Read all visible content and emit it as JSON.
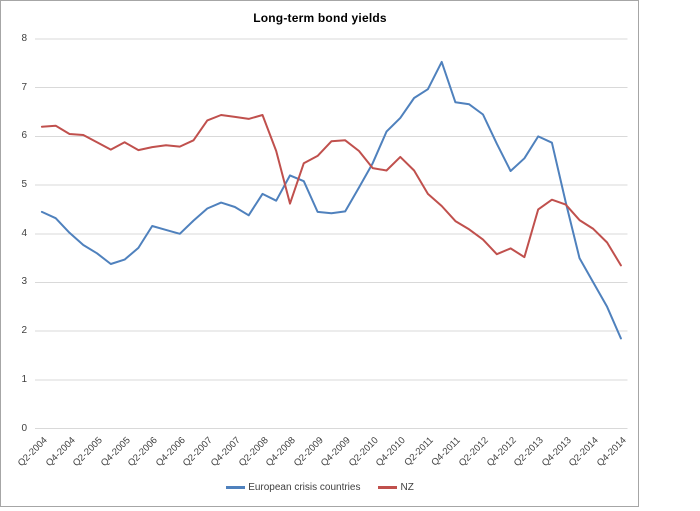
{
  "title": "Long-term bond yields",
  "legend": {
    "items": [
      {
        "label": "European crisis countries",
        "color": "#4f81bd"
      },
      {
        "label": "NZ",
        "color": "#c0504d"
      }
    ],
    "position": "bottom"
  },
  "y_axis": {
    "tick_labels": [
      "0",
      "1",
      "2",
      "3",
      "4",
      "5",
      "6",
      "7",
      "8"
    ]
  },
  "x_axis": {
    "shown_tick_labels": [
      "Q2-2004",
      "Q4-2004",
      "Q2-2005",
      "Q4-2005",
      "Q2-2006",
      "Q4-2006",
      "Q2-2007",
      "Q4-2007",
      "Q2-2008",
      "Q4-2008",
      "Q2-2009",
      "Q4-2009",
      "Q2-2010",
      "Q4-2010",
      "Q2-2011",
      "Q4-2011",
      "Q2-2012",
      "Q4-2012",
      "Q2-2013",
      "Q4-2013",
      "Q2-2014",
      "Q4-2014"
    ],
    "label_rotation_deg": -45
  },
  "colors": {
    "series_blue": "#4f81bd",
    "series_red": "#c0504d",
    "gridline": "#d9d9d9",
    "frame_border": "#a6a6a6",
    "text": "#3f3f3f"
  },
  "chart_data": {
    "type": "line",
    "title": "Long-term bond yields",
    "x": [
      "Q2-2004",
      "Q3-2004",
      "Q4-2004",
      "Q1-2005",
      "Q2-2005",
      "Q3-2005",
      "Q4-2005",
      "Q1-2006",
      "Q2-2006",
      "Q3-2006",
      "Q4-2006",
      "Q1-2007",
      "Q2-2007",
      "Q3-2007",
      "Q4-2007",
      "Q1-2008",
      "Q2-2008",
      "Q3-2008",
      "Q4-2008",
      "Q1-2009",
      "Q2-2009",
      "Q3-2009",
      "Q4-2009",
      "Q1-2010",
      "Q2-2010",
      "Q3-2010",
      "Q4-2010",
      "Q1-2011",
      "Q2-2011",
      "Q3-2011",
      "Q4-2011",
      "Q1-2012",
      "Q2-2012",
      "Q3-2012",
      "Q4-2012",
      "Q1-2013",
      "Q2-2013",
      "Q3-2013",
      "Q4-2013",
      "Q1-2014",
      "Q2-2014",
      "Q3-2014",
      "Q4-2014"
    ],
    "x_tick_step": 2,
    "series": [
      {
        "name": "European crisis countries",
        "color": "#4f81bd",
        "values": [
          4.45,
          4.32,
          4.02,
          3.77,
          3.6,
          3.38,
          3.47,
          3.71,
          4.16,
          4.08,
          4.0,
          4.27,
          4.52,
          4.64,
          4.55,
          4.38,
          4.82,
          4.68,
          5.2,
          5.08,
          4.45,
          4.42,
          4.46,
          4.95,
          5.45,
          6.1,
          6.38,
          6.79,
          6.97,
          7.53,
          6.7,
          6.66,
          6.45,
          5.85,
          5.29,
          5.55,
          6.0,
          5.87,
          4.65,
          3.5,
          3.0,
          2.5,
          1.85
        ]
      },
      {
        "name": "NZ",
        "color": "#c0504d",
        "values": [
          6.2,
          6.22,
          6.05,
          6.03,
          5.88,
          5.73,
          5.88,
          5.72,
          5.78,
          5.82,
          5.79,
          5.92,
          6.33,
          6.44,
          6.4,
          6.36,
          6.44,
          5.7,
          4.62,
          5.45,
          5.6,
          5.9,
          5.92,
          5.7,
          5.35,
          5.3,
          5.58,
          5.3,
          4.82,
          4.57,
          4.26,
          4.09,
          3.88,
          3.58,
          3.7,
          3.52,
          4.5,
          4.7,
          4.6,
          4.28,
          4.1,
          3.82,
          3.35
        ]
      }
    ],
    "xlabel": "",
    "ylabel": "",
    "ylim": [
      0,
      8
    ],
    "ytick_interval": 1,
    "grid": "horizontal",
    "legend_position": "bottom"
  }
}
